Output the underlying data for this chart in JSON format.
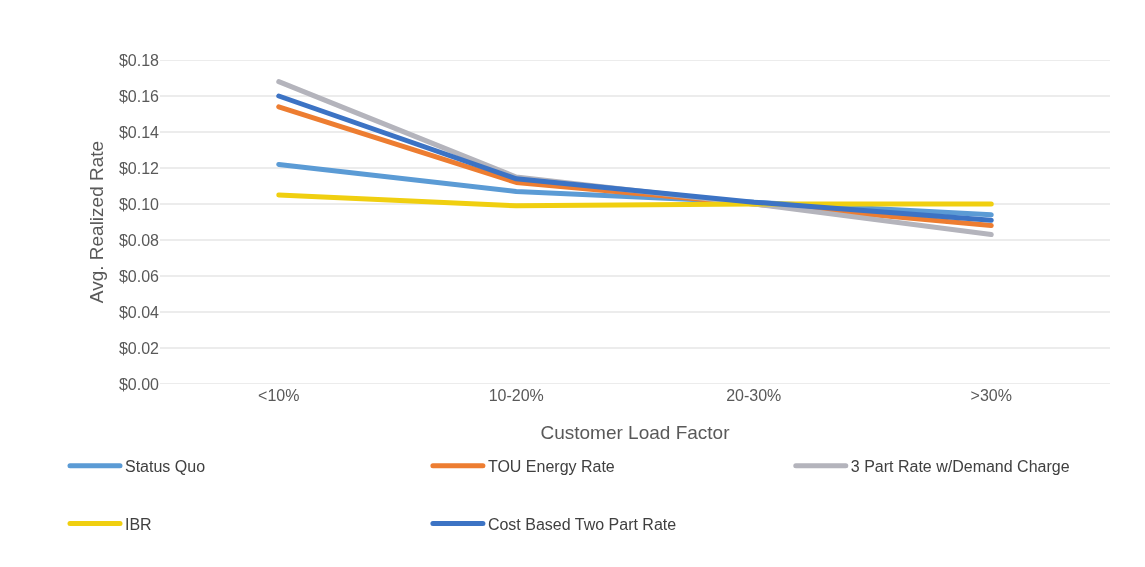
{
  "chart_data": {
    "type": "line",
    "xlabel": "Customer Load Factor",
    "ylabel": "Avg. Realized Rate",
    "categories": [
      "<10%",
      "10-20%",
      "20-30%",
      ">30%"
    ],
    "series": [
      {
        "name": "Status Quo",
        "color": "#5b9bd5",
        "values": [
          0.122,
          0.107,
          0.101,
          0.094
        ]
      },
      {
        "name": "TOU Energy Rate",
        "color": "#ed7d31",
        "values": [
          0.154,
          0.112,
          0.1,
          0.088
        ]
      },
      {
        "name": "3 Part Rate w/Demand Charge",
        "color": "#b4b4bc",
        "values": [
          0.168,
          0.115,
          0.1,
          0.083
        ]
      },
      {
        "name": "IBR",
        "color": "#f0cf10",
        "values": [
          0.105,
          0.099,
          0.1,
          0.1
        ]
      },
      {
        "name": "Cost Based Two Part Rate",
        "color": "#3c73c4",
        "values": [
          0.16,
          0.114,
          0.101,
          0.091
        ]
      }
    ],
    "ylim": [
      0,
      0.18
    ],
    "yticks": [
      {
        "value": 0,
        "label": "$0.00"
      },
      {
        "value": 0.02,
        "label": "$0.02"
      },
      {
        "value": 0.04,
        "label": "$0.04"
      },
      {
        "value": 0.06,
        "label": "$0.06"
      },
      {
        "value": 0.08,
        "label": "$0.08"
      },
      {
        "value": 0.1,
        "label": "$0.10"
      },
      {
        "value": 0.12,
        "label": "$0.12"
      },
      {
        "value": 0.14,
        "label": "$0.14"
      },
      {
        "value": 0.16,
        "label": "$0.16"
      },
      {
        "value": 0.18,
        "label": "$0.18"
      }
    ],
    "grid": "y",
    "legend": "bottom",
    "marker": "none",
    "line_style": "solid"
  }
}
